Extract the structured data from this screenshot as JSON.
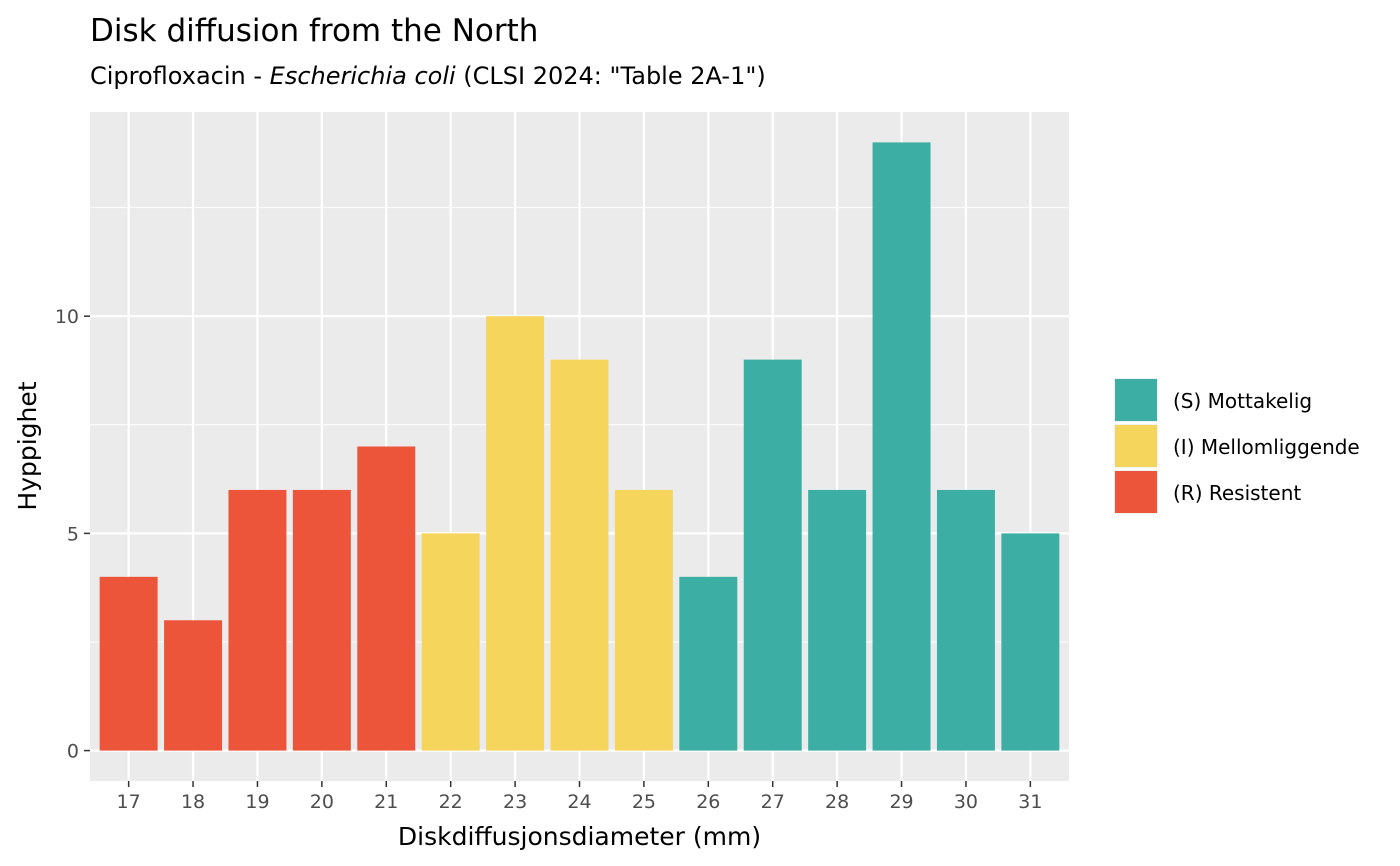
{
  "chart_data": {
    "type": "bar",
    "title": "Disk diffusion from the North",
    "subtitle": {
      "prefix": "Ciprofloxacin - ",
      "organism": "Escherichia coli",
      "suffix": " (CLSI 2024: \"Table 2A-1\")"
    },
    "xlabel": "Diskdiffusjonsdiameter (mm)",
    "ylabel": "Hyppighet",
    "categories": [
      "17",
      "18",
      "19",
      "20",
      "21",
      "22",
      "23",
      "24",
      "25",
      "26",
      "27",
      "28",
      "29",
      "30",
      "31"
    ],
    "values": [
      4,
      3,
      6,
      6,
      7,
      5,
      10,
      9,
      6,
      4,
      9,
      6,
      14,
      6,
      5
    ],
    "groups": [
      "R",
      "R",
      "R",
      "R",
      "R",
      "I",
      "I",
      "I",
      "I",
      "S",
      "S",
      "S",
      "S",
      "S",
      "S"
    ],
    "ylim": [
      -0.7,
      14.7
    ],
    "yticks": [
      0,
      5,
      10
    ],
    "grid": true,
    "legend_position": "right",
    "legend": [
      {
        "key": "S",
        "label": "(S) Mottakelig",
        "color": "#3CAEA3"
      },
      {
        "key": "I",
        "label": "(I) Mellomliggende",
        "color": "#F6D55C"
      },
      {
        "key": "R",
        "label": "(R) Resistent",
        "color": "#ED553B"
      }
    ],
    "panel_color": "#EBEBEB"
  }
}
